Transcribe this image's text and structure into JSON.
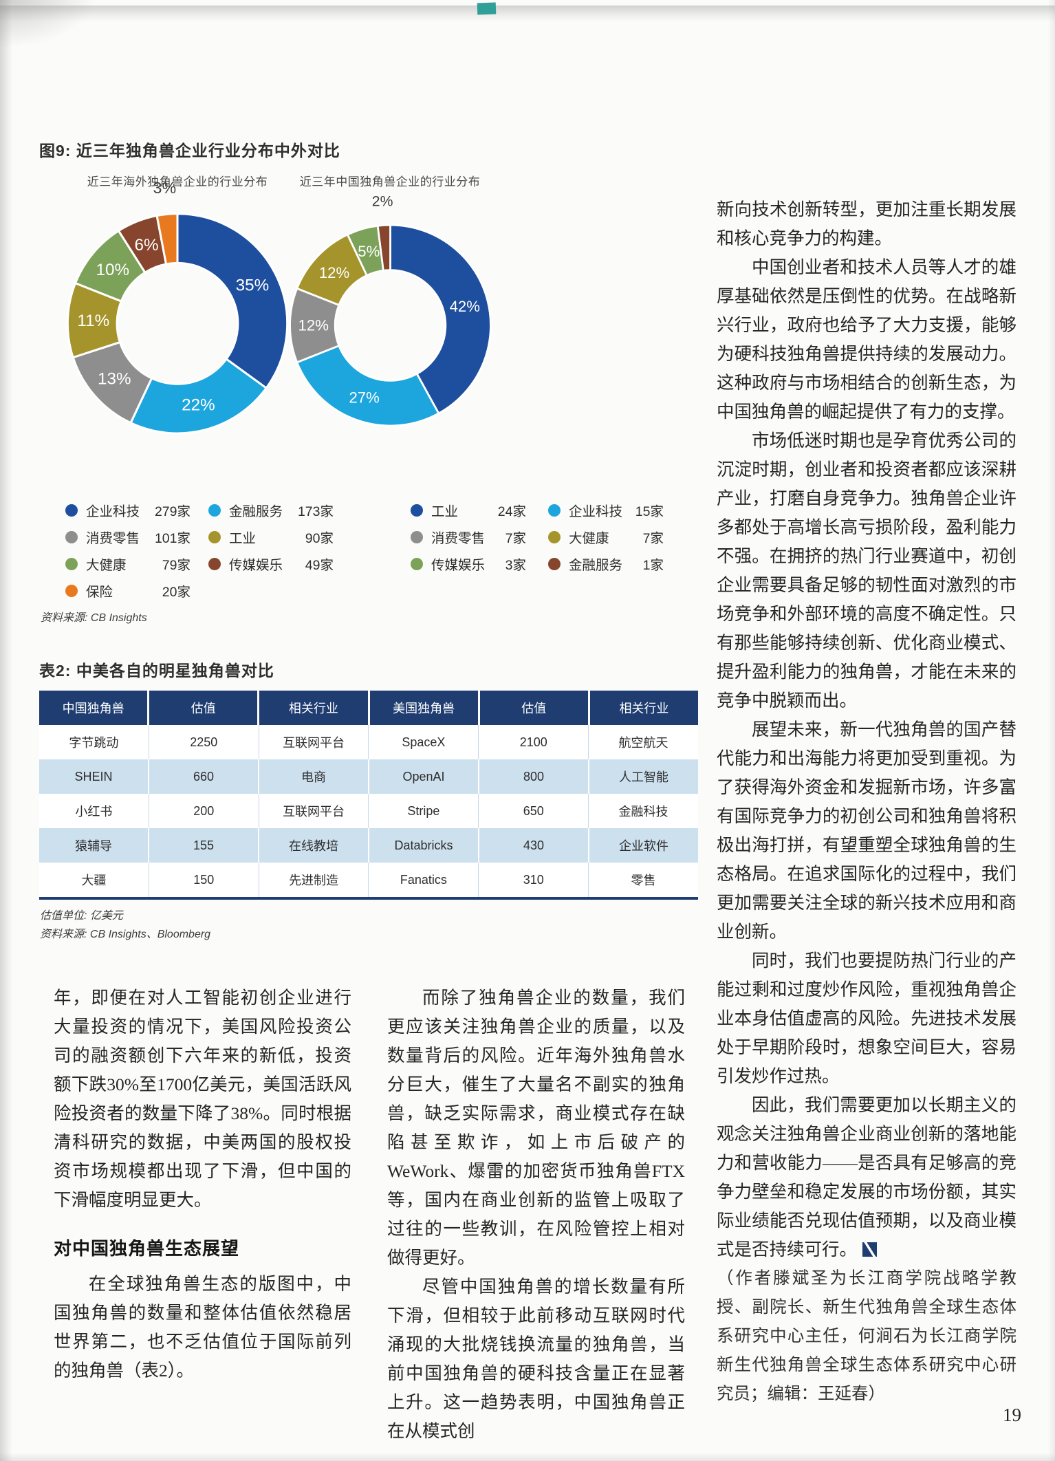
{
  "scan": {
    "page_number": "19"
  },
  "figure9": {
    "title": "图9: 近三年独角兽企业行业分布中外对比",
    "source": "资料来源: CB Insights"
  },
  "chart_data": [
    {
      "type": "pie",
      "title": "近三年海外独角兽企业的行业分布",
      "labels": [
        "企业科技",
        "金融服务",
        "消费零售",
        "工业",
        "大健康",
        "传媒娱乐",
        "保险"
      ],
      "values": [
        35,
        22,
        13,
        11,
        10,
        6,
        3
      ],
      "unit": "%",
      "counts": [
        "279家",
        "173家",
        "101家",
        "90家",
        "79家",
        "49家",
        "20家"
      ],
      "colors": [
        "#1e4e9e",
        "#1ca6dd",
        "#8e8e8e",
        "#a5942c",
        "#7ca25a",
        "#86452c",
        "#e8791e"
      ],
      "legend_columns": [
        [
          0,
          2,
          4,
          6
        ],
        [
          1,
          3,
          5
        ]
      ],
      "outside_label_threshold": 4
    },
    {
      "type": "pie",
      "title": "近三年中国独角兽企业的行业分布",
      "labels": [
        "工业",
        "企业科技",
        "消费零售",
        "大健康",
        "传媒娱乐",
        "金融服务"
      ],
      "values": [
        42,
        27,
        12,
        12,
        5,
        2
      ],
      "unit": "%",
      "counts": [
        "24家",
        "15家",
        "7家",
        "7家",
        "3家",
        "1家"
      ],
      "colors": [
        "#1e4e9e",
        "#1ca6dd",
        "#8e8e8e",
        "#a5942c",
        "#7ca25a",
        "#86452c"
      ],
      "legend_columns": [
        [
          0,
          2,
          4
        ],
        [
          1,
          3,
          5
        ]
      ],
      "outside_label_threshold": 4
    }
  ],
  "table2": {
    "title": "表2: 中美各自的明星独角兽对比",
    "headers": [
      "中国独角兽",
      "估值",
      "相关行业",
      "美国独角兽",
      "估值",
      "相关行业"
    ],
    "rows": [
      [
        "字节跳动",
        "2250",
        "互联网平台",
        "SpaceX",
        "2100",
        "航空航天"
      ],
      [
        "SHEIN",
        "660",
        "电商",
        "OpenAI",
        "800",
        "人工智能"
      ],
      [
        "小红书",
        "200",
        "互联网平台",
        "Stripe",
        "650",
        "金融科技"
      ],
      [
        "猿辅导",
        "155",
        "在线教培",
        "Databricks",
        "430",
        "企业软件"
      ],
      [
        "大疆",
        "150",
        "先进制造",
        "Fanatics",
        "310",
        "零售"
      ]
    ],
    "notes": [
      "估值单位: 亿美元",
      "资料来源: CB Insights、Bloomberg"
    ]
  },
  "article": {
    "columns": [
      {
        "blocks": [
          {
            "type": "p",
            "indent": false,
            "text": "年，即便在对人工智能初创企业进行大量投资的情况下，美国风险投资公司的融资额创下六年来的新低，投资额下跌30%至1700亿美元，美国活跃风险投资者的数量下降了38%。同时根据清科研究的数据，中美两国的股权投资市场规模都出现了下滑，但中国的下滑幅度明显更大。"
          },
          {
            "type": "h",
            "text": "对中国独角兽生态展望"
          },
          {
            "type": "p",
            "indent": true,
            "text": "在全球独角兽生态的版图中，中国独角兽的数量和整体估值依然稳居世界第二，也不乏估值位于国际前列的独角兽（表2）。"
          }
        ]
      },
      {
        "blocks": [
          {
            "type": "p",
            "indent": true,
            "text": "而除了独角兽企业的数量，我们更应该关注独角兽企业的质量，以及数量背后的风险。近年海外独角兽水分巨大，催生了大量名不副实的独角兽，缺乏实际需求，商业模式存在缺陷甚至欺诈，如上市后破产的WeWork、爆雷的加密货币独角兽FTX等，国内在商业创新的监管上吸取了过往的一些教训，在风险管控上相对做得更好。"
          },
          {
            "type": "p",
            "indent": true,
            "text": "尽管中国独角兽的增长数量有所下滑，但相较于此前移动互联网时代涌现的大批烧钱换流量的独角兽，当前中国独角兽的硬科技含量正在显著上升。这一趋势表明，中国独角兽正在从模式创"
          }
        ]
      },
      {
        "blocks": [
          {
            "type": "p",
            "indent": false,
            "text": "新向技术创新转型，更加注重长期发展和核心竞争力的构建。"
          },
          {
            "type": "p",
            "indent": true,
            "text": "中国创业者和技术人员等人才的雄厚基础依然是压倒性的优势。在战略新兴行业，政府也给予了大力支援，能够为硬科技独角兽提供持续的发展动力。这种政府与市场相结合的创新生态，为中国独角兽的崛起提供了有力的支撑。"
          },
          {
            "type": "p",
            "indent": true,
            "text": "市场低迷时期也是孕育优秀公司的沉淀时期，创业者和投资者都应该深耕产业，打磨自身竞争力。独角兽企业许多都处于高增长高亏损阶段，盈利能力不强。在拥挤的热门行业赛道中，初创企业需要具备足够的韧性面对激烈的市场竞争和外部环境的高度不确定性。只有那些能够持续创新、优化商业模式、提升盈利能力的独角兽，才能在未来的竞争中脱颖而出。"
          },
          {
            "type": "p",
            "indent": true,
            "text": "展望未来，新一代独角兽的国产替代能力和出海能力将更加受到重视。为了获得海外资金和发掘新市场，许多富有国际竞争力的初创公司和独角兽将积极出海打拼，有望重塑全球独角兽的生态格局。在追求国际化的过程中，我们更加需要关注全球的新兴技术应用和商业创新。"
          },
          {
            "type": "p",
            "indent": true,
            "text": "同时，我们也要提防热门行业的产能过剩和过度炒作风险，重视独角兽企业本身估值虚高的风险。先进技术发展处于早期阶段时，想象空间巨大，容易引发炒作过热。"
          },
          {
            "type": "p",
            "indent": true,
            "end_mark": true,
            "text": "因此，我们需要更加以长期主义的观念关注独角兽企业商业创新的落地能力和营收能力——是否具有足够高的竞争力壁垒和稳定发展的市场份额，其实际业绩能否兑现估值预期，以及商业模式是否持续可行。"
          },
          {
            "type": "note",
            "text": "（作者滕斌圣为长江商学院战略学教授、副院长、新生代独角兽全球生态体系研究中心主任，何涧石为长江商学院新生代独角兽全球生态体系研究中心研究员；编辑：王延春）"
          }
        ]
      }
    ]
  }
}
